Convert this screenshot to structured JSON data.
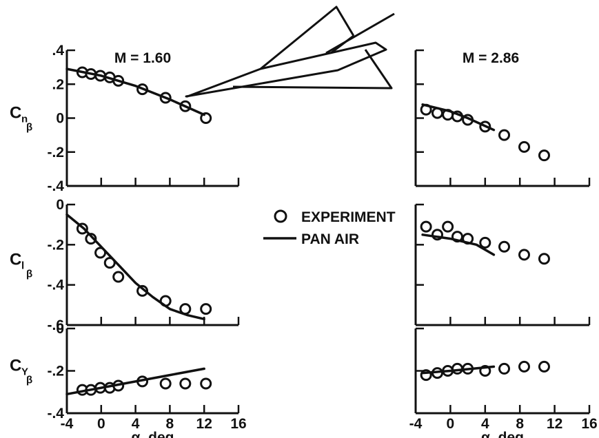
{
  "chart_data": [
    {
      "type": "scatter",
      "panel": "Cn_beta, M = 1.60",
      "title": "M = 1.60",
      "ylabel_main": "C",
      "ylabel_sub1": "n",
      "ylabel_sub2": "β",
      "xlim": [
        -4,
        16
      ],
      "ylim": [
        -0.4,
        0.4
      ],
      "xticks": [
        -4,
        0,
        4,
        8,
        12,
        16
      ],
      "yticks": [
        0.4,
        0.2,
        0,
        -0.2,
        -0.4
      ],
      "ytick_labels": [
        ".4",
        ".2",
        "0",
        "-.2",
        "-.4"
      ],
      "series": [
        {
          "name": "EXPERIMENT",
          "x": [
            -2.2,
            -1.2,
            -0.1,
            1.0,
            2.0,
            4.8,
            7.5,
            9.8,
            12.2
          ],
          "y": [
            0.27,
            0.26,
            0.25,
            0.24,
            0.22,
            0.17,
            0.12,
            0.07,
            0.0
          ]
        },
        {
          "name": "PAN AIR",
          "x": [
            -4,
            0,
            4,
            8,
            12
          ],
          "y": [
            0.29,
            0.25,
            0.19,
            0.11,
            0.02
          ]
        }
      ]
    },
    {
      "type": "scatter",
      "panel": "Cl_beta, M = 1.60",
      "ylabel_main": "C",
      "ylabel_sub1": "l",
      "ylabel_sub2": "β",
      "xlim": [
        -4,
        16
      ],
      "ylim": [
        -0.6,
        0
      ],
      "xticks": [
        -4,
        0,
        4,
        8,
        12,
        16
      ],
      "yticks": [
        0,
        -0.2,
        -0.4,
        -0.6
      ],
      "ytick_labels": [
        "0",
        "-.2",
        "-.4",
        "-.6"
      ],
      "series": [
        {
          "name": "EXPERIMENT",
          "x": [
            -2.2,
            -1.2,
            -0.1,
            1.0,
            2.0,
            4.8,
            7.5,
            9.8,
            12.2
          ],
          "y": [
            -0.12,
            -0.17,
            -0.24,
            -0.29,
            -0.36,
            -0.43,
            -0.48,
            -0.52,
            -0.52
          ]
        },
        {
          "name": "PAN AIR",
          "x": [
            -4,
            -2,
            0,
            2,
            4,
            6,
            8,
            10,
            12
          ],
          "y": [
            -0.05,
            -0.12,
            -0.21,
            -0.3,
            -0.39,
            -0.46,
            -0.52,
            -0.55,
            -0.57
          ]
        }
      ]
    },
    {
      "type": "scatter",
      "panel": "CY_beta, M = 1.60",
      "ylabel_main": "C",
      "ylabel_sub1": "Y",
      "ylabel_sub2": "β",
      "xlabel": "α, deg",
      "xlim": [
        -4,
        16
      ],
      "ylim": [
        -0.4,
        0
      ],
      "xticks": [
        -4,
        0,
        4,
        8,
        12,
        16
      ],
      "xtick_labels": [
        "-4",
        "0",
        "4",
        "8",
        "12",
        "16"
      ],
      "yticks": [
        0,
        -0.2,
        -0.4
      ],
      "ytick_labels": [
        "0",
        "-.2",
        "-.4"
      ],
      "series": [
        {
          "name": "EXPERIMENT",
          "x": [
            -2.2,
            -1.2,
            -0.1,
            1.0,
            2.0,
            4.8,
            7.5,
            9.8,
            12.2
          ],
          "y": [
            -0.29,
            -0.29,
            -0.28,
            -0.28,
            -0.27,
            -0.25,
            -0.26,
            -0.26,
            -0.26
          ]
        },
        {
          "name": "PAN AIR",
          "x": [
            -4,
            0,
            4,
            8,
            12
          ],
          "y": [
            -0.31,
            -0.28,
            -0.25,
            -0.22,
            -0.19
          ]
        }
      ]
    },
    {
      "type": "scatter",
      "panel": "Cn_beta, M = 2.86",
      "title": "M = 2.86",
      "xlim": [
        -4,
        16
      ],
      "ylim": [
        -0.4,
        0.4
      ],
      "xticks": [
        -4,
        0,
        4,
        8,
        12,
        16
      ],
      "yticks": [
        0.4,
        0.2,
        0,
        -0.2,
        -0.4
      ],
      "series": [
        {
          "name": "EXPERIMENT",
          "x": [
            -2.8,
            -1.5,
            -0.3,
            0.8,
            2.0,
            4.0,
            6.2,
            8.5,
            10.8
          ],
          "y": [
            0.05,
            0.03,
            0.02,
            0.01,
            -0.01,
            -0.05,
            -0.1,
            -0.17,
            -0.22
          ]
        },
        {
          "name": "PAN AIR",
          "x": [
            -3.2,
            0,
            2,
            5
          ],
          "y": [
            0.08,
            0.04,
            0.0,
            -0.07
          ]
        }
      ]
    },
    {
      "type": "scatter",
      "panel": "Cl_beta, M = 2.86",
      "xlim": [
        -4,
        16
      ],
      "ylim": [
        -0.6,
        0
      ],
      "xticks": [
        -4,
        0,
        4,
        8,
        12,
        16
      ],
      "yticks": [
        0,
        -0.2,
        -0.4,
        -0.6
      ],
      "series": [
        {
          "name": "EXPERIMENT",
          "x": [
            -2.8,
            -1.5,
            -0.3,
            0.8,
            2.0,
            4.0,
            6.2,
            8.5,
            10.8
          ],
          "y": [
            -0.11,
            -0.15,
            -0.11,
            -0.16,
            -0.17,
            -0.19,
            -0.21,
            -0.25,
            -0.27
          ]
        },
        {
          "name": "PAN AIR",
          "x": [
            -3.2,
            0,
            3,
            5
          ],
          "y": [
            -0.15,
            -0.17,
            -0.2,
            -0.25
          ]
        }
      ]
    },
    {
      "type": "scatter",
      "panel": "CY_beta, M = 2.86",
      "xlabel": "α, deg",
      "xlim": [
        -4,
        16
      ],
      "ylim": [
        -0.4,
        0
      ],
      "xticks": [
        -4,
        0,
        4,
        8,
        12,
        16
      ],
      "xtick_labels": [
        "-4",
        "0",
        "4",
        "8",
        "12",
        "16"
      ],
      "yticks": [
        0,
        -0.2,
        -0.4
      ],
      "series": [
        {
          "name": "EXPERIMENT",
          "x": [
            -2.8,
            -1.5,
            -0.3,
            0.8,
            2.0,
            4.0,
            6.2,
            8.5,
            10.8
          ],
          "y": [
            -0.22,
            -0.21,
            -0.2,
            -0.19,
            -0.19,
            -0.2,
            -0.19,
            -0.18,
            -0.18
          ]
        },
        {
          "name": "PAN AIR",
          "x": [
            -3.2,
            0,
            5
          ],
          "y": [
            -0.21,
            -0.2,
            -0.18
          ]
        }
      ]
    }
  ],
  "legend": {
    "experiment_label": "EXPERIMENT",
    "pan_air_label": "PAN AIR",
    "placement": "center"
  },
  "aircraft_sketch": {
    "icon": "delta-wing-aircraft-icon"
  },
  "colors": {
    "ink": "#111111",
    "background": "#ffffff"
  }
}
